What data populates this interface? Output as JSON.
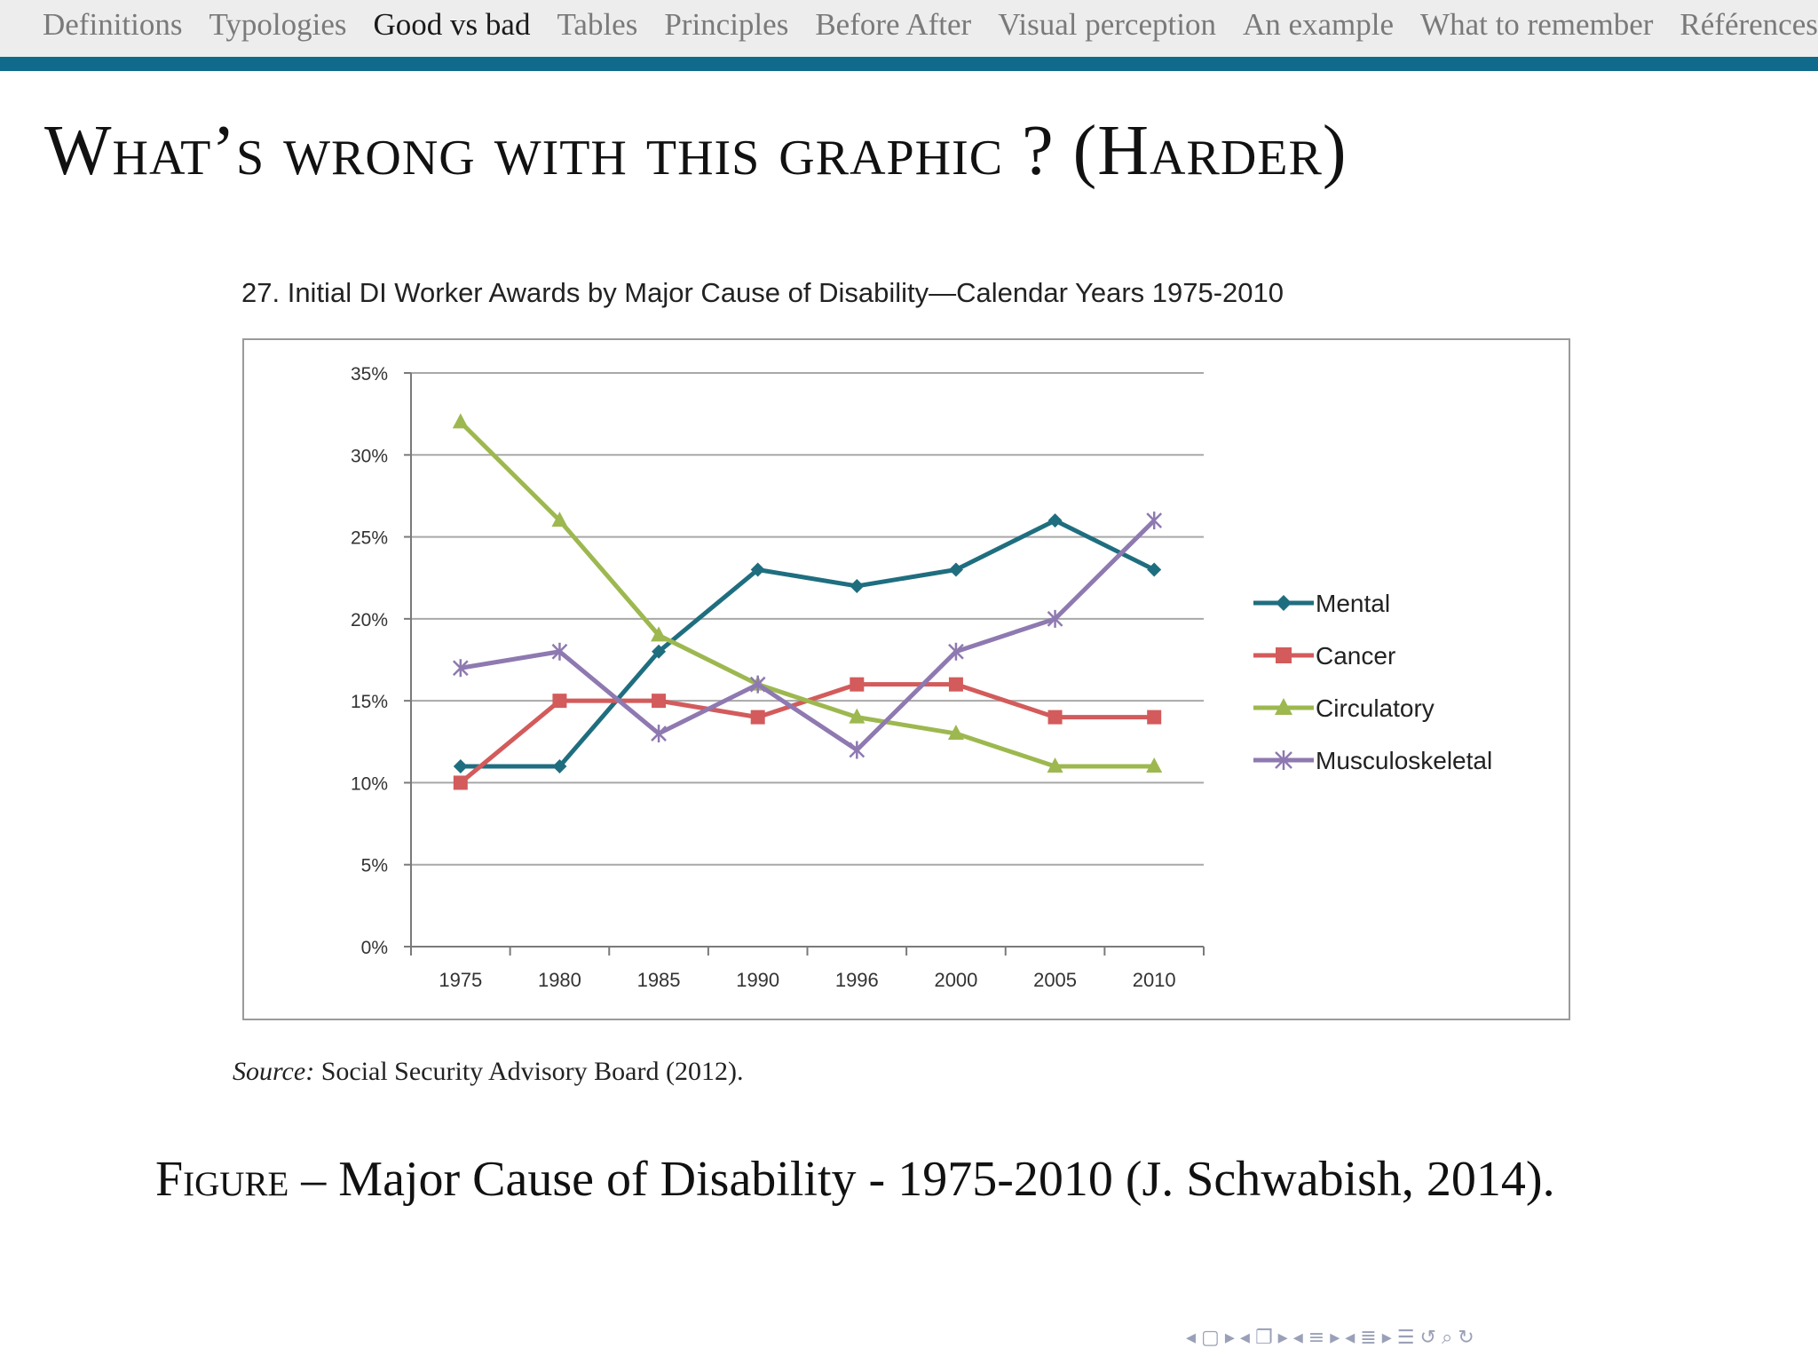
{
  "nav": {
    "items": [
      {
        "label": "Definitions",
        "active": false
      },
      {
        "label": "Typologies",
        "active": false
      },
      {
        "label": "Good vs bad",
        "active": true
      },
      {
        "label": "Tables",
        "active": false
      },
      {
        "label": "Principles",
        "active": false
      },
      {
        "label": "Before After",
        "active": false
      },
      {
        "label": "Visual perception",
        "active": false
      },
      {
        "label": "An example",
        "active": false
      },
      {
        "label": "What to remember",
        "active": false
      },
      {
        "label": "Références",
        "active": false
      }
    ]
  },
  "slide": {
    "title": "What’s wrong with this graphic ? (Harder)"
  },
  "source": {
    "label": "Source:",
    "text": " Social Security Advisory Board (2012)."
  },
  "caption": {
    "label": "Figure",
    "text": " – Major Cause of Disability - 1975-2010 (J. Schwabish, 2014)."
  },
  "chart_data": {
    "type": "line",
    "title": "27.  Initial DI Worker Awards by Major Cause of Disability—Calendar Years 1975-2010",
    "xlabel": "",
    "ylabel": "",
    "categories": [
      "1975",
      "1980",
      "1985",
      "1990",
      "1996",
      "2000",
      "2005",
      "2010"
    ],
    "yticks": [
      "0%",
      "5%",
      "10%",
      "15%",
      "20%",
      "25%",
      "30%",
      "35%"
    ],
    "ylim": [
      0,
      35
    ],
    "grid": true,
    "legend_position": "right",
    "series": [
      {
        "name": "Mental",
        "values": [
          11,
          11,
          18,
          23,
          22,
          23,
          26,
          23
        ],
        "color": "#1f6e80",
        "marker": "diamond"
      },
      {
        "name": "Cancer",
        "values": [
          10,
          15,
          15,
          14,
          16,
          16,
          14,
          14
        ],
        "color": "#d35b5b",
        "marker": "square"
      },
      {
        "name": "Circulatory",
        "values": [
          32,
          26,
          19,
          16,
          14,
          13,
          11,
          11
        ],
        "color": "#9db84f",
        "marker": "triangle"
      },
      {
        "name": "Musculoskeletal",
        "values": [
          17,
          18,
          13,
          16,
          12,
          18,
          20,
          26
        ],
        "color": "#8e79b1",
        "marker": "star"
      }
    ]
  },
  "footer_nav": {
    "icons": [
      "arrow-left-icon",
      "frame-icon",
      "arrow-right-icon",
      "arrow-left-icon",
      "subsection-icon",
      "arrow-right-icon",
      "arrow-left-icon",
      "section-icon",
      "arrow-right-icon",
      "arrow-left-icon",
      "subsubsection-icon",
      "arrow-right-icon",
      "toc-icon",
      "undo-icon",
      "search-icon",
      "redo-icon"
    ]
  }
}
